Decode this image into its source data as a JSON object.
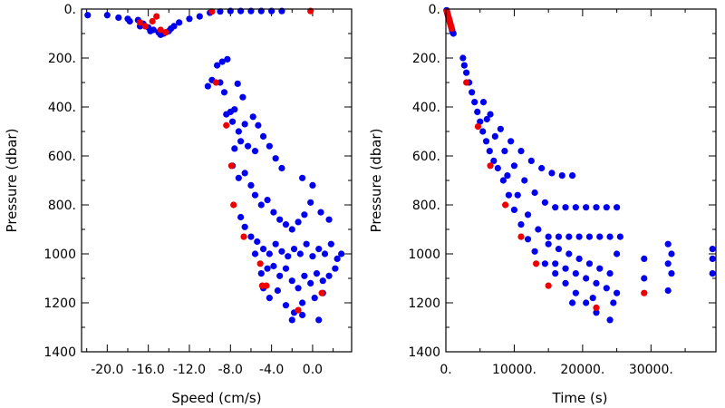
{
  "chart_data": [
    {
      "type": "scatter",
      "xlabel": "Speed (cm/s)",
      "ylabel": "Pressure (dbar)",
      "xlim": [
        -22.5,
        3.8
      ],
      "ylim": [
        0,
        1400
      ],
      "y_inverted": true,
      "xticks": [
        -20,
        -16,
        -12,
        -8,
        -4,
        0
      ],
      "xtick_labels": [
        "-20.0",
        "-16.0",
        "-12.0",
        "-8.0",
        "-4.0",
        "0.0"
      ],
      "yticks": [
        0,
        200,
        400,
        600,
        800,
        1000,
        1200,
        1400
      ],
      "ytick_labels": [
        "0.",
        "200.",
        "400.",
        "600.",
        "800.",
        "1000",
        "1200",
        "1400"
      ],
      "colors": {
        "profile": "#0000ee",
        "highlight": "#ee0000"
      },
      "blue_points": [
        [
          -21.9,
          25
        ],
        [
          -20.0,
          25
        ],
        [
          -18.9,
          35
        ],
        [
          -18.0,
          40
        ],
        [
          -17.0,
          45
        ],
        [
          -16.5,
          60
        ],
        [
          -16.0,
          75
        ],
        [
          -15.5,
          85
        ],
        [
          -15.0,
          95
        ],
        [
          -14.5,
          100
        ],
        [
          -14.0,
          90
        ],
        [
          -13.5,
          70
        ],
        [
          -13.0,
          55
        ],
        [
          -12.0,
          40
        ],
        [
          -11.0,
          30
        ],
        [
          -10.0,
          15
        ],
        [
          -9.0,
          10
        ],
        [
          -8.0,
          8
        ],
        [
          -7.0,
          8
        ],
        [
          -6.0,
          8
        ],
        [
          -5.0,
          8
        ],
        [
          -4.0,
          8
        ],
        [
          -3.0,
          8
        ],
        [
          -14.8,
          105
        ],
        [
          -15.8,
          90
        ],
        [
          -13.8,
          80
        ],
        [
          -16.8,
          70
        ],
        [
          -17.8,
          50
        ],
        [
          -8.8,
          215
        ],
        [
          -8.3,
          205
        ],
        [
          -9.3,
          230
        ],
        [
          -9.8,
          290
        ],
        [
          -9.0,
          300
        ],
        [
          -10.2,
          315
        ],
        [
          -8.6,
          340
        ],
        [
          -7.3,
          305
        ],
        [
          -6.8,
          360
        ],
        [
          -7.6,
          410
        ],
        [
          -8.0,
          420
        ],
        [
          -8.4,
          430
        ],
        [
          -7.8,
          460
        ],
        [
          -7.2,
          500
        ],
        [
          -6.6,
          470
        ],
        [
          -5.8,
          440
        ],
        [
          -5.3,
          475
        ],
        [
          -7.0,
          540
        ],
        [
          -7.6,
          570
        ],
        [
          -6.3,
          560
        ],
        [
          -5.6,
          580
        ],
        [
          -4.8,
          520
        ],
        [
          -4.2,
          560
        ],
        [
          -3.6,
          610
        ],
        [
          -3.0,
          650
        ],
        [
          -7.8,
          640
        ],
        [
          -7.2,
          690
        ],
        [
          -6.6,
          670
        ],
        [
          -6.0,
          720
        ],
        [
          -5.6,
          760
        ],
        [
          -5.0,
          800
        ],
        [
          -4.4,
          780
        ],
        [
          -3.8,
          830
        ],
        [
          -3.2,
          860
        ],
        [
          -2.6,
          880
        ],
        [
          -2.0,
          900
        ],
        [
          -1.4,
          870
        ],
        [
          -0.8,
          840
        ],
        [
          -0.2,
          790
        ],
        [
          0.8,
          830
        ],
        [
          1.6,
          860
        ],
        [
          -1.0,
          690
        ],
        [
          0.0,
          720
        ],
        [
          -7.0,
          850
        ],
        [
          -6.6,
          890
        ],
        [
          -6.0,
          930
        ],
        [
          -5.4,
          950
        ],
        [
          -4.8,
          980
        ],
        [
          -4.2,
          1000
        ],
        [
          -3.6,
          960
        ],
        [
          -3.0,
          990
        ],
        [
          -2.4,
          1010
        ],
        [
          -1.8,
          980
        ],
        [
          -1.2,
          1000
        ],
        [
          -0.6,
          960
        ],
        [
          0.0,
          1010
        ],
        [
          0.6,
          980
        ],
        [
          1.2,
          1000
        ],
        [
          1.8,
          960
        ],
        [
          2.4,
          1020
        ],
        [
          2.8,
          1000
        ],
        [
          2.2,
          1060
        ],
        [
          1.6,
          1090
        ],
        [
          1.0,
          1110
        ],
        [
          0.4,
          1080
        ],
        [
          -0.2,
          1120
        ],
        [
          -0.8,
          1090
        ],
        [
          -1.4,
          1140
        ],
        [
          -2.0,
          1110
        ],
        [
          -2.6,
          1060
        ],
        [
          -3.2,
          1090
        ],
        [
          -3.8,
          1050
        ],
        [
          -4.4,
          1060
        ],
        [
          -5.0,
          1080
        ],
        [
          -5.6,
          1000
        ],
        [
          -4.8,
          1140
        ],
        [
          -4.2,
          1180
        ],
        [
          -3.4,
          1150
        ],
        [
          -2.6,
          1210
        ],
        [
          -1.8,
          1240
        ],
        [
          -1.0,
          1200
        ],
        [
          0.2,
          1180
        ],
        [
          1.0,
          1160
        ],
        [
          -2.0,
          1270
        ],
        [
          -1.0,
          1250
        ],
        [
          0.6,
          1270
        ]
      ],
      "red_points": [
        [
          -16.8,
          55
        ],
        [
          -16.3,
          70
        ],
        [
          -15.6,
          50
        ],
        [
          -15.2,
          30
        ],
        [
          -14.8,
          85
        ],
        [
          -14.3,
          95
        ],
        [
          -9.8,
          10
        ],
        [
          -0.2,
          8
        ],
        [
          -9.4,
          300
        ],
        [
          -8.4,
          475
        ],
        [
          -7.9,
          640
        ],
        [
          -7.7,
          800
        ],
        [
          -6.7,
          930
        ],
        [
          -5.1,
          1040
        ],
        [
          -4.9,
          1130
        ],
        [
          -4.5,
          1130
        ],
        [
          -1.4,
          1230
        ],
        [
          0.9,
          1160
        ]
      ]
    },
    {
      "type": "scatter",
      "xlabel": "Time (s)",
      "ylabel": "Pressure (dbar)",
      "xlim": [
        0,
        39500
      ],
      "ylim": [
        0,
        1400
      ],
      "y_inverted": true,
      "xticks": [
        0,
        10000,
        20000,
        30000
      ],
      "xtick_labels": [
        "0.",
        "10000.",
        "20000.",
        "30000."
      ],
      "yticks": [
        0,
        200,
        400,
        600,
        800,
        1000,
        1200,
        1400
      ],
      "ytick_labels": [
        "0.",
        "200.",
        "400.",
        "600.",
        "800.",
        "1000",
        "1200",
        "1400"
      ],
      "colors": {
        "profile": "#0000ee",
        "highlight": "#ee0000"
      },
      "blue_points": [
        [
          100,
          5
        ],
        [
          200,
          15
        ],
        [
          300,
          25
        ],
        [
          400,
          35
        ],
        [
          500,
          45
        ],
        [
          600,
          55
        ],
        [
          700,
          65
        ],
        [
          800,
          75
        ],
        [
          900,
          85
        ],
        [
          1000,
          95
        ],
        [
          1100,
          100
        ],
        [
          2500,
          200
        ],
        [
          2700,
          230
        ],
        [
          3000,
          260
        ],
        [
          3400,
          300
        ],
        [
          3800,
          340
        ],
        [
          4200,
          380
        ],
        [
          4600,
          420
        ],
        [
          5000,
          460
        ],
        [
          5400,
          500
        ],
        [
          5900,
          540
        ],
        [
          6400,
          580
        ],
        [
          7000,
          620
        ],
        [
          7600,
          650
        ],
        [
          8400,
          700
        ],
        [
          9200,
          760
        ],
        [
          10000,
          820
        ],
        [
          11000,
          880
        ],
        [
          12000,
          940
        ],
        [
          13000,
          990
        ],
        [
          14500,
          1040
        ],
        [
          16000,
          1080
        ],
        [
          17500,
          1120
        ],
        [
          19000,
          1160
        ],
        [
          20500,
          1200
        ],
        [
          22000,
          1240
        ],
        [
          24000,
          1270
        ],
        [
          5500,
          380
        ],
        [
          6500,
          430
        ],
        [
          8000,
          490
        ],
        [
          9500,
          540
        ],
        [
          11000,
          580
        ],
        [
          12500,
          620
        ],
        [
          14000,
          650
        ],
        [
          15500,
          670
        ],
        [
          17000,
          680
        ],
        [
          18500,
          680
        ],
        [
          6000,
          450
        ],
        [
          7200,
          520
        ],
        [
          8600,
          580
        ],
        [
          10000,
          640
        ],
        [
          11500,
          700
        ],
        [
          13000,
          750
        ],
        [
          14500,
          790
        ],
        [
          16000,
          810
        ],
        [
          17500,
          810
        ],
        [
          19000,
          810
        ],
        [
          20500,
          810
        ],
        [
          22000,
          810
        ],
        [
          23500,
          810
        ],
        [
          25000,
          810
        ],
        [
          9000,
          680
        ],
        [
          10500,
          760
        ],
        [
          12000,
          840
        ],
        [
          13500,
          900
        ],
        [
          15000,
          930
        ],
        [
          16500,
          930
        ],
        [
          18000,
          930
        ],
        [
          19500,
          930
        ],
        [
          21000,
          930
        ],
        [
          22500,
          930
        ],
        [
          24000,
          930
        ],
        [
          25500,
          930
        ],
        [
          15000,
          960
        ],
        [
          16500,
          980
        ],
        [
          18000,
          1000
        ],
        [
          19500,
          1020
        ],
        [
          21000,
          1040
        ],
        [
          22500,
          1060
        ],
        [
          24000,
          1080
        ],
        [
          25000,
          1000
        ],
        [
          16000,
          1040
        ],
        [
          17500,
          1060
        ],
        [
          19000,
          1080
        ],
        [
          20500,
          1100
        ],
        [
          22000,
          1120
        ],
        [
          23500,
          1140
        ],
        [
          25000,
          1160
        ],
        [
          18500,
          1200
        ],
        [
          21500,
          1180
        ],
        [
          24500,
          1200
        ],
        [
          29000,
          1020
        ],
        [
          29000,
          1100
        ],
        [
          32500,
          960
        ],
        [
          33000,
          1000
        ],
        [
          32500,
          1040
        ],
        [
          33000,
          1080
        ],
        [
          32500,
          1150
        ],
        [
          39000,
          980
        ],
        [
          39000,
          1020
        ],
        [
          39000,
          1080
        ]
      ],
      "red_points": [
        [
          150,
          10
        ],
        [
          250,
          20
        ],
        [
          350,
          30
        ],
        [
          450,
          40
        ],
        [
          550,
          50
        ],
        [
          650,
          60
        ],
        [
          750,
          70
        ],
        [
          850,
          80
        ],
        [
          3000,
          300
        ],
        [
          4700,
          480
        ],
        [
          6500,
          640
        ],
        [
          8700,
          800
        ],
        [
          11000,
          930
        ],
        [
          13200,
          1040
        ],
        [
          15000,
          1130
        ],
        [
          22000,
          1220
        ],
        [
          29000,
          1160
        ]
      ]
    }
  ]
}
